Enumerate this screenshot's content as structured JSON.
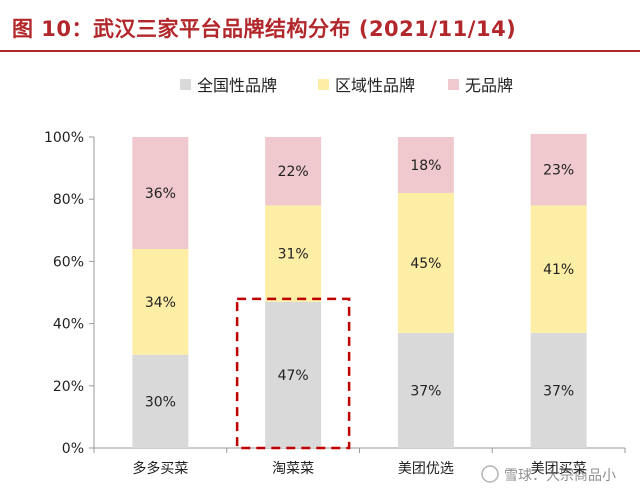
{
  "title": "图 10：武汉三家平台品牌结构分布 (2021/11/14)",
  "watermark": "雪球：大宗商品小",
  "chart_data": {
    "type": "bar",
    "stacked": true,
    "categories": [
      "多多买菜",
      "淘菜菜",
      "美团优选",
      "美团买菜"
    ],
    "series": [
      {
        "name": "全国性品牌",
        "color": "#d9d9d9",
        "values": [
          30,
          47,
          37,
          37
        ],
        "labels": [
          "30%",
          "47%",
          "37%",
          "37%"
        ]
      },
      {
        "name": "区域性品牌",
        "color": "#fdeea6",
        "values": [
          34,
          31,
          45,
          41
        ],
        "labels": [
          "34%",
          "31%",
          "45%",
          "41%"
        ]
      },
      {
        "name": "无品牌",
        "color": "#efc9cd",
        "values": [
          36,
          22,
          18,
          23
        ],
        "labels": [
          "36%",
          "22%",
          "18%",
          "23%"
        ]
      }
    ],
    "ylim": [
      0,
      100
    ],
    "yticks": [
      "0%",
      "20%",
      "40%",
      "60%",
      "80%",
      "100%"
    ],
    "legend_position": "top",
    "highlight": {
      "category": "淘菜菜",
      "series": "全国性品牌",
      "color": "#c00000"
    }
  }
}
